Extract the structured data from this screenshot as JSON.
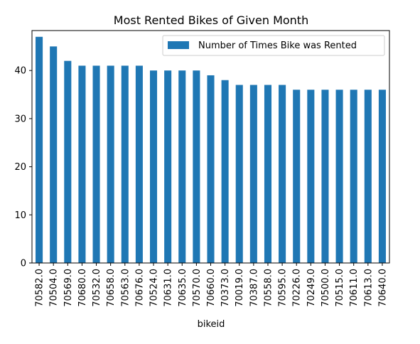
{
  "chart_data": {
    "type": "bar",
    "title": "Most Rented Bikes of Given Month",
    "xlabel": "bikeid",
    "ylabel": "",
    "ylim": [
      0,
      48.3
    ],
    "yticks": [
      0,
      10,
      20,
      30,
      40
    ],
    "grid": false,
    "legend_position": "top-right",
    "categories": [
      "70582.0",
      "70504.0",
      "70569.0",
      "70680.0",
      "70532.0",
      "70658.0",
      "70563.0",
      "70676.0",
      "70524.0",
      "70631.0",
      "70635.0",
      "70570.0",
      "70660.0",
      "70373.0",
      "70019.0",
      "70387.0",
      "70558.0",
      "70595.0",
      "70226.0",
      "70249.0",
      "70500.0",
      "70515.0",
      "70611.0",
      "70613.0",
      "70640.0"
    ],
    "series": [
      {
        "name": "Number of Times Bike was Rented",
        "color": "#1f77b4",
        "values": [
          47,
          45,
          42,
          41,
          41,
          41,
          41,
          41,
          40,
          40,
          40,
          40,
          39,
          38,
          37,
          37,
          37,
          37,
          36,
          36,
          36,
          36,
          36,
          36,
          36
        ]
      }
    ]
  }
}
